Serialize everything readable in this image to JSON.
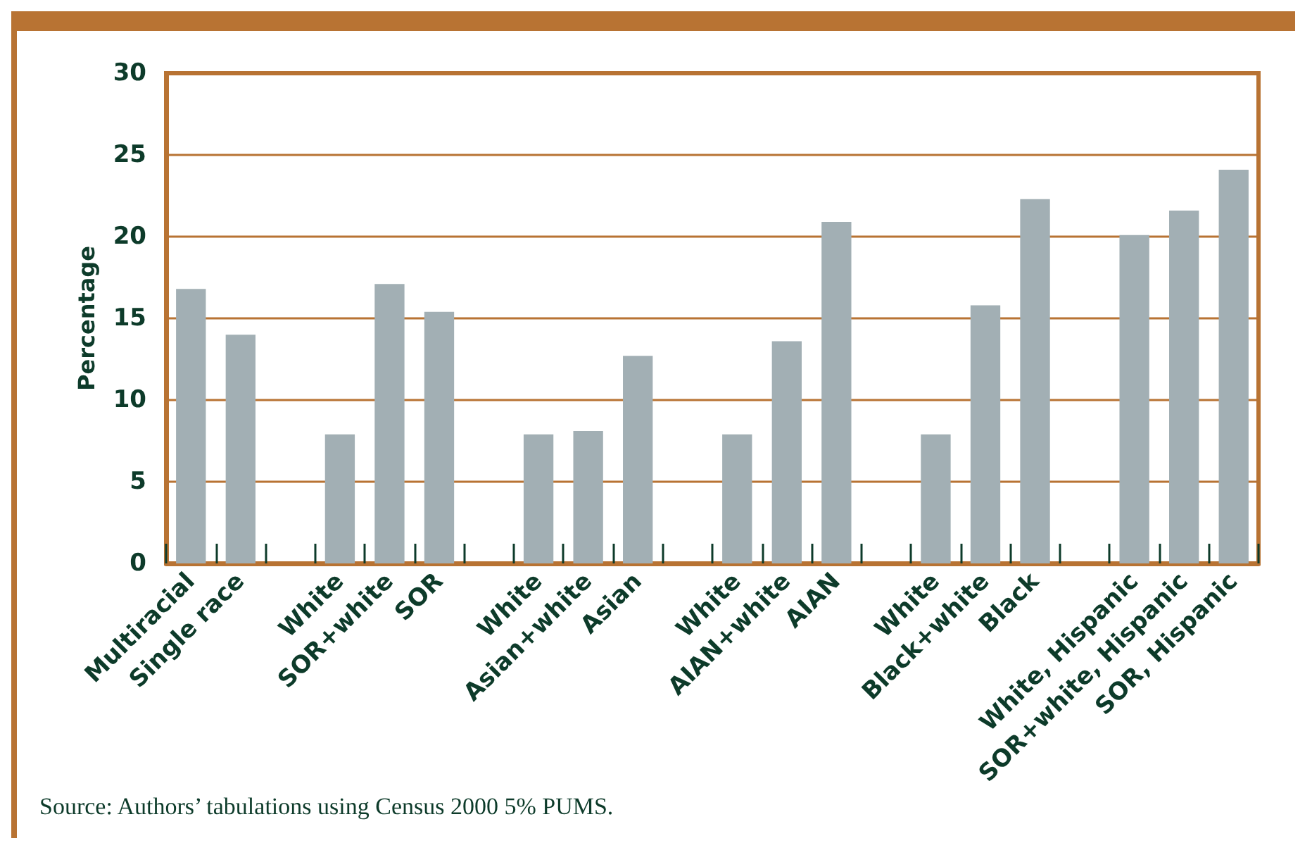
{
  "chart_data": {
    "type": "bar",
    "ylabel": "Percentage",
    "categories": [
      "Multiracial",
      "Single race",
      null,
      "White",
      "SOR+white",
      "SOR",
      null,
      "White",
      "Asian+white",
      "Asian",
      null,
      "White",
      "AIAN+white",
      "AIAN",
      null,
      "White",
      "Black+white",
      "Black",
      null,
      "White, Hispanic",
      "SOR+white, Hispanic",
      "SOR, Hispanic"
    ],
    "values": [
      16.8,
      14.0,
      null,
      7.9,
      17.1,
      15.4,
      null,
      7.9,
      8.1,
      12.7,
      null,
      7.9,
      13.6,
      20.9,
      null,
      7.9,
      15.8,
      22.3,
      null,
      20.1,
      21.6,
      24.1
    ],
    "color": "#a2afb4",
    "ylim": [
      0,
      30
    ],
    "yticks": [
      0,
      5,
      10,
      15,
      20,
      25,
      30
    ],
    "grid": "y",
    "annotations": [
      "Source: Authors’ tabulations using Census 2000 5% PUMS."
    ]
  }
}
